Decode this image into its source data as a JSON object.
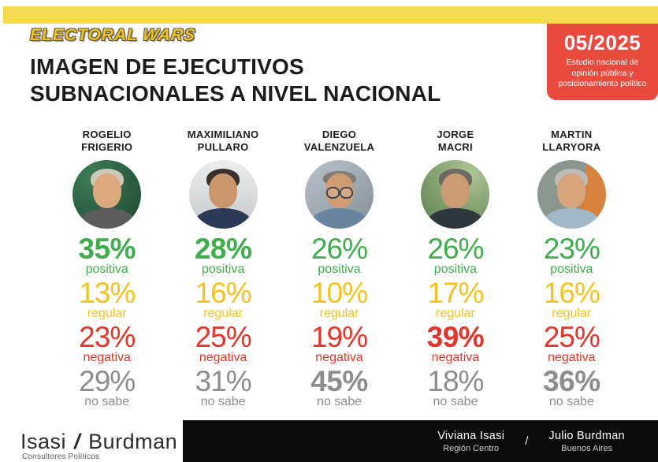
{
  "logo": {
    "part1": "ELECTORAL",
    "part2": "WARS"
  },
  "title": {
    "line1": "IMAGEN DE EJECUTIVOS",
    "line2": "SUBNACIONALES A NIVEL NACIONAL"
  },
  "badge": {
    "date": "05/2025",
    "line1": "Estudio nacional de",
    "line2": "opinión pública y",
    "line3": "posicionamiento político",
    "background_color": "#E84A3E"
  },
  "colors": {
    "top_bar": "#F4DA4F",
    "positiva": "#3FAD4C",
    "regular": "#F6C31C",
    "negativa": "#E63429",
    "no_sabe": "#8D8D8F"
  },
  "politicians": [
    {
      "name1": "ROGELIO",
      "name2": "FRIGERIO",
      "metrics": [
        {
          "value": "35%",
          "label": "positiva"
        },
        {
          "value": "13%",
          "label": "regular"
        },
        {
          "value": "23%",
          "label": "negativa"
        },
        {
          "value": "29%",
          "label": "no sabe"
        }
      ]
    },
    {
      "name1": "MAXIMILIANO",
      "name2": "PULLARO",
      "metrics": [
        {
          "value": "28%",
          "label": "positiva"
        },
        {
          "value": "16%",
          "label": "regular"
        },
        {
          "value": "25%",
          "label": "negativa"
        },
        {
          "value": "31%",
          "label": "no sabe"
        }
      ]
    },
    {
      "name1": "DIEGO",
      "name2": "VALENZUELA",
      "metrics": [
        {
          "value": "26%",
          "label": "positiva"
        },
        {
          "value": "10%",
          "label": "regular"
        },
        {
          "value": "19%",
          "label": "negativa"
        },
        {
          "value": "45%",
          "label": "no sabe"
        }
      ]
    },
    {
      "name1": "JORGE",
      "name2": "MACRI",
      "metrics": [
        {
          "value": "26%",
          "label": "positiva"
        },
        {
          "value": "17%",
          "label": "regular"
        },
        {
          "value": "39%",
          "label": "negativa"
        },
        {
          "value": "18%",
          "label": "no sabe"
        }
      ]
    },
    {
      "name1": "MARTIN",
      "name2": "LLARYORA",
      "metrics": [
        {
          "value": "23%",
          "label": "positiva"
        },
        {
          "value": "16%",
          "label": "regular"
        },
        {
          "value": "25%",
          "label": "negativa"
        },
        {
          "value": "36%",
          "label": "no sabe"
        }
      ]
    }
  ],
  "footer": {
    "brand1": "Isasi",
    "slash": "/",
    "brand2": "Burdman",
    "tagline": "Consultores Políticos",
    "credit1_name": "Viviana Isasi",
    "credit1_region": "Región Centro",
    "credit_slash": "/",
    "credit2_name": "Julio Burdman",
    "credit2_region": "Buenos Aires"
  },
  "chart_data": {
    "type": "table",
    "title": "IMAGEN DE EJECUTIVOS SUBNACIONALES A NIVEL NACIONAL",
    "subtitle": "Estudio nacional de opinión pública y posicionamiento político — 05/2025",
    "unit": "%",
    "categories": [
      "positiva",
      "regular",
      "negativa",
      "no sabe"
    ],
    "series": [
      {
        "name": "Rogelio Frigerio",
        "values": [
          35,
          13,
          23,
          29
        ],
        "highlight": "positiva"
      },
      {
        "name": "Maximiliano Pullaro",
        "values": [
          28,
          16,
          25,
          31
        ],
        "highlight": "positiva"
      },
      {
        "name": "Diego Valenzuela",
        "values": [
          26,
          10,
          19,
          45
        ],
        "highlight": "no sabe"
      },
      {
        "name": "Jorge Macri",
        "values": [
          26,
          17,
          39,
          18
        ],
        "highlight": "negativa"
      },
      {
        "name": "Martin Llaryora",
        "values": [
          23,
          16,
          25,
          36
        ],
        "highlight": "no sabe"
      }
    ],
    "category_colors": {
      "positiva": "#3FAD4C",
      "regular": "#F6C31C",
      "negativa": "#E63429",
      "no sabe": "#8D8D8F"
    }
  }
}
